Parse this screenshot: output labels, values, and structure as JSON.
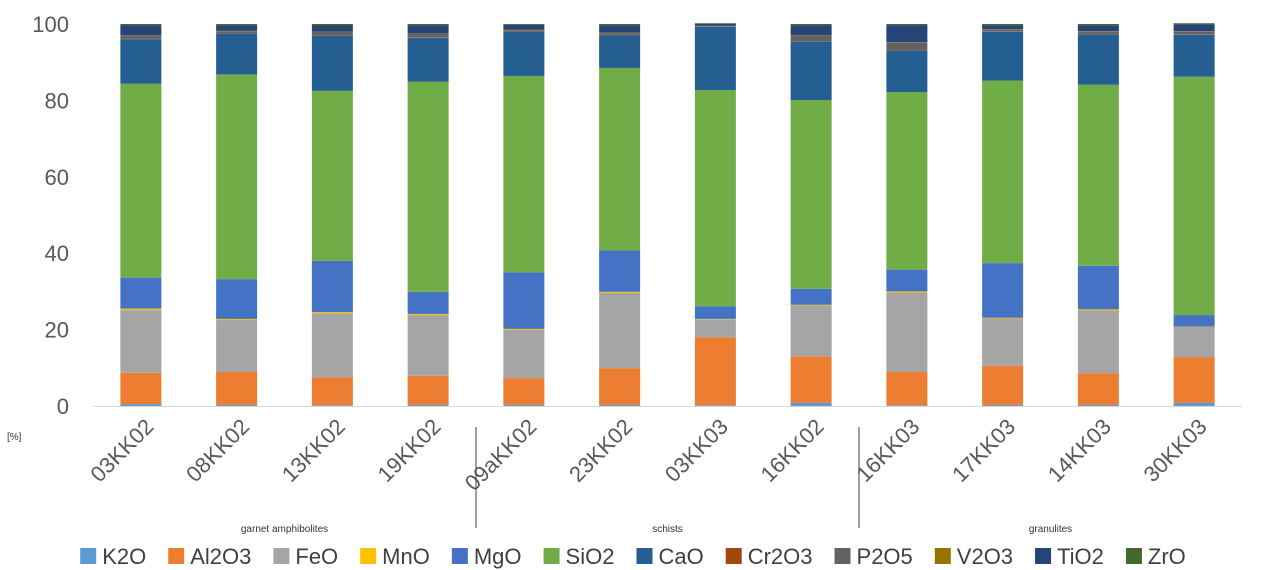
{
  "chart_data": {
    "type": "bar",
    "stacked": true,
    "unit_label": "[%]",
    "categories": [
      "03KK02",
      "08KK02",
      "13KK02",
      "19KK02",
      "09aKK02",
      "23KK02",
      "03KK03",
      "16KK02",
      "16KK03",
      "17KK03",
      "14KK03",
      "30KK03"
    ],
    "groups": [
      {
        "label": "garnet amphibolites",
        "categories": [
          "03KK02",
          "08KK02",
          "13KK02",
          "19KK02"
        ]
      },
      {
        "label": "schists",
        "categories": [
          "09aKK02",
          "23KK02",
          "03KK03",
          "16KK02"
        ]
      },
      {
        "label": "granulites",
        "categories": [
          "16KK03",
          "17KK03",
          "14KK03",
          "30KK03"
        ]
      }
    ],
    "ylim": [
      0,
      100
    ],
    "yticks": [
      0,
      20,
      40,
      60,
      80,
      100
    ],
    "grid": false,
    "legend_position": "bottom",
    "series": [
      {
        "name": "K2O",
        "color": "#5B9BD5",
        "values": [
          0.5,
          0.3,
          0.2,
          0.3,
          0.3,
          0.3,
          0.2,
          0.8,
          0.2,
          0.3,
          0.3,
          0.8
        ]
      },
      {
        "name": "Al2O3",
        "color": "#ED7D31",
        "values": [
          8.2,
          8.6,
          7.3,
          7.6,
          7.0,
          9.6,
          17.8,
          12.2,
          8.7,
          10.2,
          8.3,
          12.0
        ]
      },
      {
        "name": "FeO",
        "color": "#A5A5A5",
        "values": [
          16.4,
          13.6,
          16.8,
          15.9,
          12.6,
          19.7,
          4.7,
          13.3,
          20.8,
          12.4,
          16.4,
          7.9
        ]
      },
      {
        "name": "MnO",
        "color": "#FFC000",
        "values": [
          0.4,
          0.3,
          0.3,
          0.3,
          0.3,
          0.3,
          0.1,
          0.2,
          0.3,
          0.2,
          0.3,
          0.1
        ]
      },
      {
        "name": "MgO",
        "color": "#4472C4",
        "values": [
          8.1,
          10.4,
          13.4,
          5.8,
          14.8,
          10.8,
          3.3,
          4.2,
          5.7,
          14.3,
          11.4,
          3.0
        ]
      },
      {
        "name": "SiO2",
        "color": "#70AD47",
        "values": [
          50.8,
          53.6,
          44.5,
          55.0,
          51.4,
          47.8,
          56.6,
          49.4,
          46.5,
          47.8,
          47.4,
          62.4
        ]
      },
      {
        "name": "CaO",
        "color": "#255E91",
        "values": [
          11.6,
          10.7,
          14.4,
          11.5,
          11.5,
          8.5,
          16.6,
          15.3,
          10.9,
          12.8,
          13.2,
          11.0
        ]
      },
      {
        "name": "Cr2O3",
        "color": "#9E480E",
        "values": [
          0.1,
          0.1,
          0.1,
          0.1,
          0.1,
          0.1,
          0.1,
          0.1,
          0.1,
          0.1,
          0.1,
          0.1
        ]
      },
      {
        "name": "P2O5",
        "color": "#636363",
        "values": [
          0.9,
          0.5,
          0.9,
          0.9,
          0.4,
          0.5,
          0.2,
          1.5,
          1.9,
          0.4,
          0.6,
          0.7
        ]
      },
      {
        "name": "V2O3",
        "color": "#997300",
        "values": [
          0.1,
          0.1,
          0.1,
          0.1,
          0.1,
          0.1,
          0.0,
          0.1,
          0.1,
          0.1,
          0.1,
          0.1
        ]
      },
      {
        "name": "TiO2",
        "color": "#264478",
        "values": [
          2.6,
          1.5,
          1.6,
          2.2,
          1.3,
          2.0,
          0.4,
          2.6,
          4.5,
          1.0,
          1.6,
          1.8
        ]
      },
      {
        "name": "ZrO",
        "color": "#43682B",
        "values": [
          0.3,
          0.3,
          0.4,
          0.3,
          0.2,
          0.3,
          0.2,
          0.3,
          0.3,
          0.4,
          0.3,
          0.3
        ]
      }
    ]
  }
}
